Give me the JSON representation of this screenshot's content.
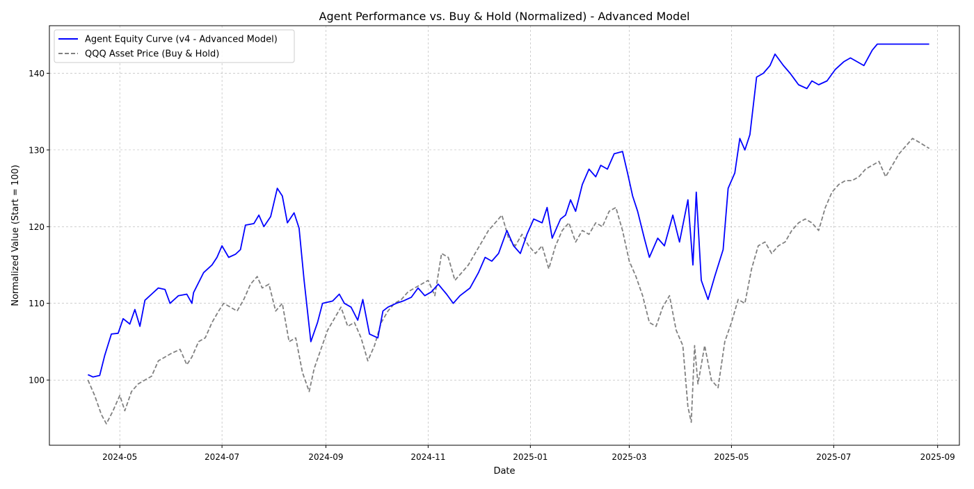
{
  "chart_data": {
    "type": "line",
    "title": "Agent Performance vs. Buy & Hold (Normalized) - Advanced Model",
    "xlabel": "Date",
    "ylabel": "Normalized Value (Start = 100)",
    "xlim": [
      "2024-03-20",
      "2025-09-14"
    ],
    "ylim": [
      91.5,
      146.2
    ],
    "grid": true,
    "legend_position": "top-left",
    "x_ticks": [
      "2024-05",
      "2024-07",
      "2024-09",
      "2024-11",
      "2025-01",
      "2025-03",
      "2025-05",
      "2025-07",
      "2025-09"
    ],
    "y_ticks": [
      100,
      110,
      120,
      130,
      140
    ],
    "series": [
      {
        "name": "Agent Equity Curve (v4 - Advanced Model)",
        "color": "#0000ff",
        "line_style": "solid",
        "points": [
          [
            "2024-04-12",
            100.7
          ],
          [
            "2024-04-15",
            100.4
          ],
          [
            "2024-04-19",
            100.6
          ],
          [
            "2024-04-22",
            103.2
          ],
          [
            "2024-04-26",
            106.0
          ],
          [
            "2024-04-30",
            106.1
          ],
          [
            "2024-05-03",
            108.0
          ],
          [
            "2024-05-07",
            107.3
          ],
          [
            "2024-05-10",
            109.2
          ],
          [
            "2024-05-13",
            107.0
          ],
          [
            "2024-05-16",
            110.4
          ],
          [
            "2024-05-20",
            111.2
          ],
          [
            "2024-05-24",
            112.0
          ],
          [
            "2024-05-28",
            111.8
          ],
          [
            "2024-05-31",
            110.0
          ],
          [
            "2024-06-05",
            111.0
          ],
          [
            "2024-06-10",
            111.2
          ],
          [
            "2024-06-13",
            110.0
          ],
          [
            "2024-06-14",
            111.4
          ],
          [
            "2024-06-20",
            114.0
          ],
          [
            "2024-06-25",
            115.0
          ],
          [
            "2024-06-28",
            116.0
          ],
          [
            "2024-07-01",
            117.5
          ],
          [
            "2024-07-05",
            116.0
          ],
          [
            "2024-07-09",
            116.4
          ],
          [
            "2024-07-12",
            117.0
          ],
          [
            "2024-07-15",
            120.2
          ],
          [
            "2024-07-20",
            120.4
          ],
          [
            "2024-07-23",
            121.5
          ],
          [
            "2024-07-26",
            120.0
          ],
          [
            "2024-07-30",
            121.3
          ],
          [
            "2024-08-03",
            125.0
          ],
          [
            "2024-08-06",
            124.0
          ],
          [
            "2024-08-09",
            120.5
          ],
          [
            "2024-08-13",
            121.8
          ],
          [
            "2024-08-16",
            119.8
          ],
          [
            "2024-08-19",
            113.0
          ],
          [
            "2024-08-23",
            105.0
          ],
          [
            "2024-08-27",
            107.5
          ],
          [
            "2024-08-30",
            110.0
          ],
          [
            "2024-09-05",
            110.3
          ],
          [
            "2024-09-09",
            111.2
          ],
          [
            "2024-09-12",
            110.0
          ],
          [
            "2024-09-16",
            109.5
          ],
          [
            "2024-09-20",
            107.8
          ],
          [
            "2024-09-23",
            110.5
          ],
          [
            "2024-09-27",
            106.0
          ],
          [
            "2024-10-02",
            105.5
          ],
          [
            "2024-10-05",
            109.0
          ],
          [
            "2024-10-08",
            109.5
          ],
          [
            "2024-10-13",
            110.0
          ],
          [
            "2024-10-17",
            110.3
          ],
          [
            "2024-10-22",
            110.8
          ],
          [
            "2024-10-26",
            112.0
          ],
          [
            "2024-10-30",
            111.0
          ],
          [
            "2024-11-03",
            111.5
          ],
          [
            "2024-11-07",
            112.5
          ],
          [
            "2024-11-12",
            111.2
          ],
          [
            "2024-11-16",
            110.0
          ],
          [
            "2024-11-20",
            111.0
          ],
          [
            "2024-11-26",
            112.0
          ],
          [
            "2024-12-01",
            114.0
          ],
          [
            "2024-12-05",
            116.0
          ],
          [
            "2024-12-09",
            115.5
          ],
          [
            "2024-12-13",
            116.5
          ],
          [
            "2024-12-18",
            119.5
          ],
          [
            "2024-12-22",
            117.5
          ],
          [
            "2024-12-26",
            116.5
          ],
          [
            "2024-12-30",
            119.0
          ],
          [
            "2025-01-03",
            121.0
          ],
          [
            "2025-01-08",
            120.5
          ],
          [
            "2025-01-11",
            122.5
          ],
          [
            "2025-01-14",
            118.5
          ],
          [
            "2025-01-19",
            121.0
          ],
          [
            "2025-01-22",
            121.5
          ],
          [
            "2025-01-25",
            123.5
          ],
          [
            "2025-01-28",
            122.0
          ],
          [
            "2025-02-01",
            125.5
          ],
          [
            "2025-02-05",
            127.5
          ],
          [
            "2025-02-09",
            126.5
          ],
          [
            "2025-02-12",
            128.0
          ],
          [
            "2025-02-16",
            127.5
          ],
          [
            "2025-02-20",
            129.5
          ],
          [
            "2025-02-25",
            129.8
          ],
          [
            "2025-02-28",
            127.0
          ],
          [
            "2025-03-03",
            124.0
          ],
          [
            "2025-03-06",
            122.0
          ],
          [
            "2025-03-10",
            118.5
          ],
          [
            "2025-03-13",
            116.0
          ],
          [
            "2025-03-18",
            118.5
          ],
          [
            "2025-03-22",
            117.5
          ],
          [
            "2025-03-27",
            121.5
          ],
          [
            "2025-03-31",
            118.0
          ],
          [
            "2025-04-05",
            123.5
          ],
          [
            "2025-04-08",
            115.0
          ],
          [
            "2025-04-10",
            124.5
          ],
          [
            "2025-04-13",
            113.0
          ],
          [
            "2025-04-17",
            110.5
          ],
          [
            "2025-04-21",
            113.5
          ],
          [
            "2025-04-26",
            117.0
          ],
          [
            "2025-04-29",
            125.0
          ],
          [
            "2025-05-03",
            127.0
          ],
          [
            "2025-05-06",
            131.5
          ],
          [
            "2025-05-09",
            130.0
          ],
          [
            "2025-05-12",
            132.0
          ],
          [
            "2025-05-16",
            139.5
          ],
          [
            "2025-05-20",
            140.0
          ],
          [
            "2025-05-24",
            141.0
          ],
          [
            "2025-05-27",
            142.5
          ],
          [
            "2025-06-01",
            141.0
          ],
          [
            "2025-06-05",
            140.0
          ],
          [
            "2025-06-10",
            138.5
          ],
          [
            "2025-06-15",
            138.0
          ],
          [
            "2025-06-18",
            139.0
          ],
          [
            "2025-06-22",
            138.5
          ],
          [
            "2025-06-27",
            139.0
          ],
          [
            "2025-07-02",
            140.5
          ],
          [
            "2025-07-07",
            141.5
          ],
          [
            "2025-07-11",
            142.0
          ],
          [
            "2025-07-15",
            141.5
          ],
          [
            "2025-07-19",
            141.0
          ],
          [
            "2025-07-24",
            143.0
          ],
          [
            "2025-07-27",
            143.8
          ],
          [
            "2025-08-15",
            143.8
          ],
          [
            "2025-08-27",
            143.8
          ]
        ]
      },
      {
        "name": "QQQ Asset Price (Buy & Hold)",
        "color": "#808080",
        "line_style": "dashed",
        "points": [
          [
            "2024-04-12",
            100.0
          ],
          [
            "2024-04-16",
            98.0
          ],
          [
            "2024-04-20",
            95.5
          ],
          [
            "2024-04-23",
            94.3
          ],
          [
            "2024-04-27",
            96.0
          ],
          [
            "2024-05-01",
            98.0
          ],
          [
            "2024-05-04",
            96.0
          ],
          [
            "2024-05-08",
            98.5
          ],
          [
            "2024-05-12",
            99.5
          ],
          [
            "2024-05-16",
            100.0
          ],
          [
            "2024-05-20",
            100.5
          ],
          [
            "2024-05-24",
            102.5
          ],
          [
            "2024-05-28",
            103.0
          ],
          [
            "2024-06-01",
            103.5
          ],
          [
            "2024-06-06",
            104.0
          ],
          [
            "2024-06-10",
            102.0
          ],
          [
            "2024-06-13",
            103.0
          ],
          [
            "2024-06-17",
            105.0
          ],
          [
            "2024-06-21",
            105.5
          ],
          [
            "2024-06-25",
            107.5
          ],
          [
            "2024-06-29",
            109.0
          ],
          [
            "2024-07-02",
            110.0
          ],
          [
            "2024-07-06",
            109.5
          ],
          [
            "2024-07-10",
            109.0
          ],
          [
            "2024-07-14",
            110.5
          ],
          [
            "2024-07-18",
            112.5
          ],
          [
            "2024-07-22",
            113.5
          ],
          [
            "2024-07-25",
            112.0
          ],
          [
            "2024-07-29",
            112.5
          ],
          [
            "2024-08-02",
            109.0
          ],
          [
            "2024-08-06",
            110.0
          ],
          [
            "2024-08-10",
            105.0
          ],
          [
            "2024-08-14",
            105.5
          ],
          [
            "2024-08-18",
            101.0
          ],
          [
            "2024-08-22",
            98.5
          ],
          [
            "2024-08-25",
            101.5
          ],
          [
            "2024-08-29",
            104.0
          ],
          [
            "2024-09-02",
            106.5
          ],
          [
            "2024-09-06",
            108.0
          ],
          [
            "2024-09-10",
            109.5
          ],
          [
            "2024-09-14",
            107.0
          ],
          [
            "2024-09-18",
            107.5
          ],
          [
            "2024-09-22",
            105.5
          ],
          [
            "2024-09-26",
            102.5
          ],
          [
            "2024-09-30",
            104.5
          ],
          [
            "2024-10-04",
            107.5
          ],
          [
            "2024-10-08",
            109.0
          ],
          [
            "2024-10-12",
            110.0
          ],
          [
            "2024-10-16",
            110.5
          ],
          [
            "2024-10-20",
            111.5
          ],
          [
            "2024-10-24",
            112.0
          ],
          [
            "2024-10-28",
            112.5
          ],
          [
            "2024-11-01",
            113.0
          ],
          [
            "2024-11-05",
            111.0
          ],
          [
            "2024-11-09",
            116.5
          ],
          [
            "2024-11-13",
            116.0
          ],
          [
            "2024-11-17",
            113.0
          ],
          [
            "2024-11-21",
            114.0
          ],
          [
            "2024-11-25",
            115.0
          ],
          [
            "2024-11-29",
            116.5
          ],
          [
            "2024-12-03",
            118.0
          ],
          [
            "2024-12-07",
            119.5
          ],
          [
            "2024-12-11",
            120.5
          ],
          [
            "2024-12-15",
            121.5
          ],
          [
            "2024-12-19",
            118.5
          ],
          [
            "2024-12-23",
            117.5
          ],
          [
            "2024-12-27",
            119.0
          ],
          [
            "2024-12-31",
            117.5
          ],
          [
            "2025-01-04",
            116.5
          ],
          [
            "2025-01-08",
            117.5
          ],
          [
            "2025-01-12",
            114.5
          ],
          [
            "2025-01-16",
            117.5
          ],
          [
            "2025-01-20",
            119.5
          ],
          [
            "2025-01-24",
            120.5
          ],
          [
            "2025-01-28",
            118.0
          ],
          [
            "2025-02-01",
            119.5
          ],
          [
            "2025-02-05",
            119.0
          ],
          [
            "2025-02-09",
            120.5
          ],
          [
            "2025-02-13",
            120.0
          ],
          [
            "2025-02-17",
            122.0
          ],
          [
            "2025-02-21",
            122.5
          ],
          [
            "2025-02-25",
            119.5
          ],
          [
            "2025-03-01",
            115.5
          ],
          [
            "2025-03-05",
            113.5
          ],
          [
            "2025-03-09",
            111.0
          ],
          [
            "2025-03-13",
            107.5
          ],
          [
            "2025-03-17",
            107.0
          ],
          [
            "2025-03-21",
            109.5
          ],
          [
            "2025-03-25",
            111.0
          ],
          [
            "2025-03-29",
            106.5
          ],
          [
            "2025-04-02",
            104.5
          ],
          [
            "2025-04-05",
            96.5
          ],
          [
            "2025-04-07",
            94.5
          ],
          [
            "2025-04-09",
            104.5
          ],
          [
            "2025-04-11",
            99.5
          ],
          [
            "2025-04-15",
            104.5
          ],
          [
            "2025-04-19",
            100.0
          ],
          [
            "2025-04-23",
            99.0
          ],
          [
            "2025-04-27",
            105.0
          ],
          [
            "2025-05-01",
            107.5
          ],
          [
            "2025-05-05",
            110.5
          ],
          [
            "2025-05-09",
            110.0
          ],
          [
            "2025-05-13",
            114.5
          ],
          [
            "2025-05-17",
            117.5
          ],
          [
            "2025-05-21",
            118.0
          ],
          [
            "2025-05-25",
            116.5
          ],
          [
            "2025-05-29",
            117.5
          ],
          [
            "2025-06-02",
            118.0
          ],
          [
            "2025-06-06",
            119.5
          ],
          [
            "2025-06-10",
            120.5
          ],
          [
            "2025-06-14",
            121.0
          ],
          [
            "2025-06-18",
            120.5
          ],
          [
            "2025-06-22",
            119.5
          ],
          [
            "2025-06-26",
            122.5
          ],
          [
            "2025-06-30",
            124.5
          ],
          [
            "2025-07-04",
            125.5
          ],
          [
            "2025-07-08",
            126.0
          ],
          [
            "2025-07-12",
            126.0
          ],
          [
            "2025-07-16",
            126.5
          ],
          [
            "2025-07-20",
            127.5
          ],
          [
            "2025-07-24",
            128.0
          ],
          [
            "2025-07-28",
            128.5
          ],
          [
            "2025-08-01",
            126.5
          ],
          [
            "2025-08-05",
            128.0
          ],
          [
            "2025-08-09",
            129.5
          ],
          [
            "2025-08-13",
            130.5
          ],
          [
            "2025-08-17",
            131.5
          ],
          [
            "2025-08-21",
            131.0
          ],
          [
            "2025-08-27",
            130.2
          ]
        ]
      }
    ]
  }
}
